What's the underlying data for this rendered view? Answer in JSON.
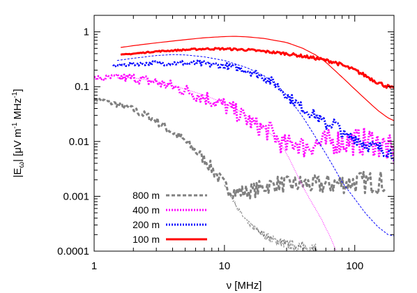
{
  "chart_data": {
    "type": "line",
    "x_scale": "log",
    "y_scale": "log",
    "xlim": [
      1,
      200
    ],
    "ylim": [
      0.0001,
      2
    ],
    "xlabel": "ν [MHz]",
    "ylabel": "|Eω| [μV m⁻¹ MHz⁻¹]",
    "ylabel_parts": {
      "pre": "|E",
      "sub": "ω",
      "mid": "| [μV m",
      "sup1": "-1",
      "mid2": " MHz",
      "sup2": "-1",
      "post": "]"
    },
    "x_ticks": [
      {
        "value": 1,
        "label": "1"
      },
      {
        "value": 10,
        "label": "10"
      },
      {
        "value": 100,
        "label": "100"
      }
    ],
    "y_ticks": [
      {
        "value": 0.0001,
        "label": "0.0001"
      },
      {
        "value": 0.001,
        "label": "0.001"
      },
      {
        "value": 0.01,
        "label": "0.01"
      },
      {
        "value": 0.1,
        "label": "0.1"
      },
      {
        "value": 1,
        "label": "1"
      }
    ],
    "grid": false,
    "legend_position": "bottom-left",
    "series": [
      {
        "name": "800 m",
        "color": "#808080",
        "style": "dashed-thick",
        "noise": 0.35,
        "points": [
          [
            1,
            0.06
          ],
          [
            1.5,
            0.048
          ],
          [
            2,
            0.038
          ],
          [
            3,
            0.024
          ],
          [
            4,
            0.015
          ],
          [
            5,
            0.01
          ],
          [
            6,
            0.0068
          ],
          [
            7,
            0.0048
          ],
          [
            8,
            0.0032
          ],
          [
            9,
            0.0022
          ],
          [
            10,
            0.0016
          ],
          [
            11,
            0.0013
          ],
          [
            12,
            0.0012
          ],
          [
            14,
            0.0012
          ],
          [
            17,
            0.0013
          ],
          [
            20,
            0.0015
          ],
          [
            25,
            0.0017
          ],
          [
            30,
            0.0016
          ],
          [
            40,
            0.0017
          ],
          [
            50,
            0.0016
          ],
          [
            70,
            0.0017
          ],
          [
            100,
            0.0018
          ],
          [
            140,
            0.0018
          ],
          [
            170,
            0.0018
          ]
        ]
      },
      {
        "name": "",
        "color": "#808080",
        "style": "thin-dashed",
        "noise": 0.2,
        "points": [
          [
            10,
            0.0016
          ],
          [
            11,
            0.0011
          ],
          [
            12,
            0.00075
          ],
          [
            13,
            0.00055
          ],
          [
            14,
            0.00042
          ],
          [
            15,
            0.00033
          ],
          [
            17,
            0.00026
          ],
          [
            20,
            0.0002
          ],
          [
            24,
            0.00016
          ],
          [
            28,
            0.00014
          ],
          [
            32,
            0.00013
          ],
          [
            38,
            0.00012
          ],
          [
            45,
            0.00011
          ],
          [
            52,
            0.0001
          ]
        ]
      },
      {
        "name": "400 m",
        "color": "#ff00ff",
        "style": "dotted-thick",
        "noise": 0.45,
        "points": [
          [
            1,
            0.14
          ],
          [
            1.5,
            0.145
          ],
          [
            2,
            0.145
          ],
          [
            3,
            0.12
          ],
          [
            4,
            0.1
          ],
          [
            5,
            0.085
          ],
          [
            7,
            0.065
          ],
          [
            10,
            0.045
          ],
          [
            13,
            0.032
          ],
          [
            17,
            0.02
          ],
          [
            20,
            0.017
          ],
          [
            23,
            0.015
          ],
          [
            26,
            0.01
          ],
          [
            30,
            0.008
          ],
          [
            35,
            0.01
          ],
          [
            40,
            0.008
          ],
          [
            50,
            0.009
          ],
          [
            70,
            0.01
          ],
          [
            100,
            0.01
          ],
          [
            140,
            0.01
          ],
          [
            170,
            0.008
          ],
          [
            200,
            0.006
          ]
        ]
      },
      {
        "name": "",
        "color": "#ff00ff",
        "style": "thin-dotted",
        "noise": 0,
        "points": [
          [
            1.5,
            0.145
          ],
          [
            2,
            0.145
          ],
          [
            3,
            0.125
          ],
          [
            4,
            0.105
          ],
          [
            5,
            0.09
          ],
          [
            7,
            0.07
          ],
          [
            10,
            0.05
          ],
          [
            13,
            0.036
          ],
          [
            17,
            0.024
          ],
          [
            20,
            0.018
          ],
          [
            24,
            0.012
          ],
          [
            28,
            0.008
          ],
          [
            32,
            0.0045
          ],
          [
            36,
            0.0025
          ],
          [
            40,
            0.0015
          ],
          [
            45,
            0.0009
          ],
          [
            55,
            0.0004
          ],
          [
            65,
            0.00018
          ],
          [
            72,
            0.0001
          ]
        ]
      },
      {
        "name": "200 m",
        "color": "#0000ff",
        "style": "dotted-thick",
        "noise": 0.2,
        "points": [
          [
            1.4,
            0.24
          ],
          [
            2,
            0.26
          ],
          [
            3,
            0.27
          ],
          [
            5,
            0.27
          ],
          [
            7,
            0.26
          ],
          [
            10,
            0.24
          ],
          [
            15,
            0.2
          ],
          [
            20,
            0.15
          ],
          [
            25,
            0.11
          ],
          [
            30,
            0.07
          ],
          [
            40,
            0.04
          ],
          [
            50,
            0.03
          ],
          [
            60,
            0.02
          ],
          [
            70,
            0.022
          ],
          [
            85,
            0.012
          ],
          [
            100,
            0.012
          ],
          [
            120,
            0.009
          ],
          [
            140,
            0.008
          ],
          [
            170,
            0.007
          ],
          [
            200,
            0.006
          ]
        ]
      },
      {
        "name": "",
        "color": "#0000ff",
        "style": "thin-dashed",
        "noise": 0,
        "points": [
          [
            1.5,
            0.3
          ],
          [
            2,
            0.33
          ],
          [
            3,
            0.37
          ],
          [
            4,
            0.385
          ],
          [
            5,
            0.38
          ],
          [
            7,
            0.35
          ],
          [
            10,
            0.3
          ],
          [
            15,
            0.22
          ],
          [
            20,
            0.16
          ],
          [
            25,
            0.11
          ],
          [
            30,
            0.07
          ],
          [
            40,
            0.028
          ],
          [
            50,
            0.012
          ],
          [
            60,
            0.006
          ],
          [
            70,
            0.0032
          ],
          [
            80,
            0.0018
          ],
          [
            100,
            0.0009
          ],
          [
            120,
            0.0005
          ],
          [
            150,
            0.00028
          ],
          [
            180,
            0.0002
          ],
          [
            200,
            0.00019
          ]
        ]
      },
      {
        "name": "100 m",
        "color": "#ff0000",
        "style": "solid-thick",
        "noise": 0.06,
        "points": [
          [
            1.6,
            0.38
          ],
          [
            2,
            0.4
          ],
          [
            3,
            0.44
          ],
          [
            5,
            0.47
          ],
          [
            7,
            0.49
          ],
          [
            10,
            0.49
          ],
          [
            15,
            0.47
          ],
          [
            20,
            0.44
          ],
          [
            30,
            0.4
          ],
          [
            40,
            0.36
          ],
          [
            50,
            0.33
          ],
          [
            70,
            0.28
          ],
          [
            100,
            0.2
          ],
          [
            120,
            0.16
          ],
          [
            150,
            0.12
          ],
          [
            180,
            0.1
          ],
          [
            200,
            0.09
          ]
        ]
      },
      {
        "name": "",
        "color": "#ff0000",
        "style": "solid-thin",
        "noise": 0,
        "points": [
          [
            1.6,
            0.52
          ],
          [
            2,
            0.56
          ],
          [
            3,
            0.63
          ],
          [
            5,
            0.72
          ],
          [
            7,
            0.78
          ],
          [
            10,
            0.82
          ],
          [
            12,
            0.83
          ],
          [
            15,
            0.81
          ],
          [
            20,
            0.76
          ],
          [
            30,
            0.64
          ],
          [
            40,
            0.5
          ],
          [
            50,
            0.38
          ],
          [
            60,
            0.28
          ],
          [
            70,
            0.2
          ],
          [
            85,
            0.13
          ],
          [
            100,
            0.09
          ],
          [
            120,
            0.06
          ],
          [
            150,
            0.037
          ],
          [
            180,
            0.027
          ],
          [
            200,
            0.024
          ]
        ]
      }
    ]
  }
}
